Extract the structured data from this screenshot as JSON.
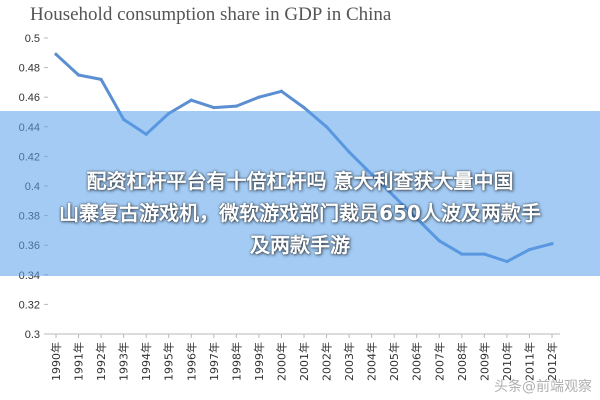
{
  "chart_data": {
    "type": "line",
    "title": "Household consumption share in GDP in China",
    "xlabel": "",
    "ylabel": "",
    "ylim": [
      0.3,
      0.5
    ],
    "y_ticks": [
      "0.3",
      "0.32",
      "0.34",
      "0.36",
      "0.38",
      "0.4",
      "0.42",
      "0.44",
      "0.46",
      "0.48",
      "0.5"
    ],
    "x_tick_labels": [
      "1990年",
      "1991年",
      "1992年",
      "1993年",
      "1994年",
      "1995年",
      "1996年",
      "1997年",
      "1998年",
      "1999年",
      "2000年",
      "2001年",
      "2002年",
      "2003年",
      "2004年",
      "2005年",
      "2006年",
      "2007年",
      "2008年",
      "2009年",
      "2010年",
      "2011年",
      "2012年"
    ],
    "x": [
      1990,
      1991,
      1992,
      1993,
      1994,
      1995,
      1996,
      1997,
      1998,
      1999,
      2000,
      2001,
      2002,
      2003,
      2004,
      2005,
      2006,
      2007,
      2008,
      2009,
      2010,
      2011,
      2012
    ],
    "series": [
      {
        "values": [
          0.489,
          0.475,
          0.472,
          0.445,
          0.435,
          0.449,
          0.458,
          0.453,
          0.454,
          0.46,
          0.464,
          0.453,
          0.44,
          0.423,
          0.408,
          0.393,
          0.378,
          0.363,
          0.354,
          0.354,
          0.349,
          0.357,
          0.361
        ]
      }
    ],
    "grid": false,
    "line_color": "#5b8fd2"
  },
  "overlay": {
    "lines": [
      "配资杠杆平台有十倍杠杆吗 意大利查获大量中国",
      "山寨复古游戏机，微软游戏部门裁员650人波及两款手",
      "及两款手游"
    ]
  },
  "watermark": "头条@前端观察"
}
